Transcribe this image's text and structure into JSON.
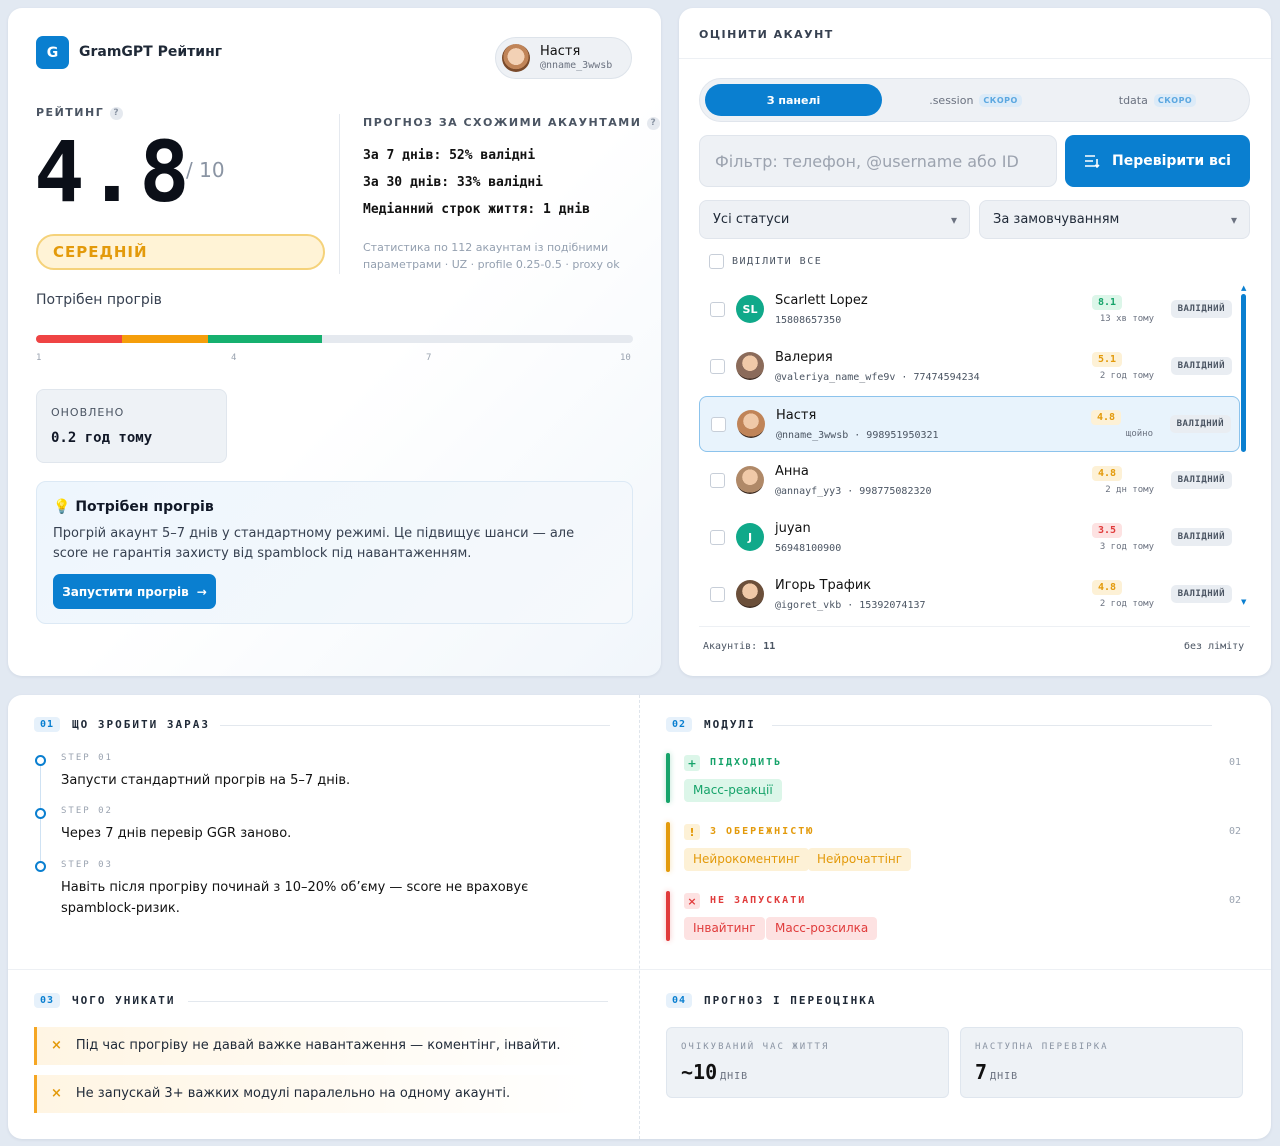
{
  "app": {
    "logo_letter": "G",
    "title": "GramGPT Рейтинг"
  },
  "user": {
    "name": "Настя",
    "handle": "@nname_3wwsb"
  },
  "rating": {
    "label": "РЕЙТИНГ",
    "help": "?",
    "value": "4.8",
    "of": "/ 10",
    "level": "СЕРЕДНІЙ",
    "value_num": 4.8,
    "scale_max": 10
  },
  "forecast": {
    "label": "ПРОГНОЗ ЗА СХОЖИМИ АКАУНТАМИ",
    "help": "?",
    "lines": [
      "За 7 днів: 52% валідні",
      "За 30 днів: 33% валідні",
      "Медіанний строк життя: 1 днів"
    ],
    "note": "Статистика по 112 акаунтам із подібними параметрами · UZ · profile 0.25-0.5 · proxy ok"
  },
  "warmup": {
    "label": "Потрібен прогрів",
    "ticks": [
      "1",
      "4",
      "7",
      "10"
    ]
  },
  "updated": {
    "label": "ОНОВЛЕНО",
    "value": "0.2 год тому"
  },
  "tip": {
    "icon": "lightbulb-icon",
    "title": "Потрібен прогрів",
    "text": "Прогрій акаунт 5–7 днів у стандартному режимі. Це підвищує шанси — але score не гарантія захисту від spamblock під навантаженням.",
    "button": "Запустити прогрів",
    "button_arrow": "→"
  },
  "rate": {
    "title": "ОЦІНИТИ АКАУНТ",
    "tabs": [
      {
        "label": "З панелі",
        "active": true
      },
      {
        "label": ".session",
        "badge": "СКОРО"
      },
      {
        "label": "tdata",
        "badge": "СКОРО"
      }
    ],
    "filter_placeholder": "Фільтр: телефон, @username або ID",
    "check_all": "Перевірити всі",
    "status_select": "Усі статуси",
    "sort_select": "За замовчуванням",
    "select_all": "ВИДІЛИТИ ВСЕ",
    "accounts": [
      {
        "name": "Scarlett Lopez",
        "sub": "15808657350",
        "initials": "SL",
        "color": "#10a98a",
        "score": "8.1",
        "tone": "g",
        "time": "13 хв тому",
        "status": "ВАЛІДНИЙ"
      },
      {
        "name": "Валерия",
        "sub": "@valeriya_name_wfe9v · 77474594234",
        "initials": "",
        "color": "#8b6b5a",
        "score": "5.1",
        "tone": "o",
        "time": "2 год тому",
        "status": "ВАЛІДНИЙ"
      },
      {
        "name": "Настя",
        "sub": "@nname_3wwsb · 998951950321",
        "initials": "",
        "color": "#c08458",
        "score": "4.8",
        "tone": "o",
        "time": "щойно",
        "status": "ВАЛІДНИЙ",
        "selected": true
      },
      {
        "name": "Анна",
        "sub": "@annayf_yy3 · 998775082320",
        "initials": "",
        "color": "#b08968",
        "score": "4.8",
        "tone": "o",
        "time": "2 дн тому",
        "status": "ВАЛІДНИЙ"
      },
      {
        "name": "juyan",
        "sub": "56948100900",
        "initials": "J",
        "color": "#10a98a",
        "score": "3.5",
        "tone": "r",
        "time": "3 год тому",
        "status": "ВАЛІДНИЙ"
      },
      {
        "name": "Игорь Трафик",
        "sub": "@igoret_vkb · 15392074137",
        "initials": "",
        "color": "#6b4f3a",
        "score": "4.8",
        "tone": "o",
        "time": "2 год тому",
        "status": "ВАЛІДНИЙ"
      }
    ],
    "footer_label": "Акаунтів:",
    "footer_count": "11",
    "footer_limit": "без ліміту"
  },
  "now": {
    "num": "01",
    "title": "ЩО ЗРОБИТИ ЗАРАЗ",
    "steps": [
      {
        "label": "STEP 01",
        "text": "Запусти стандартний прогрів на 5–7 днів."
      },
      {
        "label": "STEP 02",
        "text": "Через 7 днів перевір GGR заново."
      },
      {
        "label": "STEP 03",
        "text": "Навіть після прогріву починай з 10–20% об’єму — score не враховує spamblock-ризик."
      }
    ]
  },
  "modules": {
    "num": "02",
    "title": "МОДУЛІ",
    "groups": [
      {
        "icon": "+",
        "title": "ПІДХОДИТЬ",
        "count": "01",
        "color": "#16a36a",
        "bg": "#dcf6e9",
        "items": [
          "Масс-реакції"
        ]
      },
      {
        "icon": "!",
        "title": "З ОБЕРЕЖНІСТЮ",
        "count": "02",
        "color": "#e39a0b",
        "bg": "#fdf1d6",
        "items": [
          "Нейрокоментинг",
          "Нейрочаттінг"
        ]
      },
      {
        "icon": "×",
        "title": "НЕ ЗАПУСКАТИ",
        "count": "02",
        "color": "#e03b3b",
        "bg": "#fde2e2",
        "items": [
          "Інвайтинг",
          "Масс-розсилка"
        ]
      }
    ]
  },
  "avoid": {
    "num": "03",
    "title": "ЧОГО УНИКАТИ",
    "mark": "×",
    "items": [
      "Під час прогріву не давай важке навантаження — коментінг, інвайти.",
      "Не запускай 3+ важких модулі паралельно на одному акаунті."
    ]
  },
  "prognosis": {
    "num": "04",
    "title": "ПРОГНОЗ І ПЕРЕОЦІНКА",
    "life": {
      "label": "ОЧІКУВАНИЙ ЧАС ЖИТТЯ",
      "value": "~10",
      "unit": "ДНІВ"
    },
    "next": {
      "label": "НАСТУПНА ПЕРЕВІРКА",
      "value": "7",
      "unit": "ДНІВ"
    }
  }
}
